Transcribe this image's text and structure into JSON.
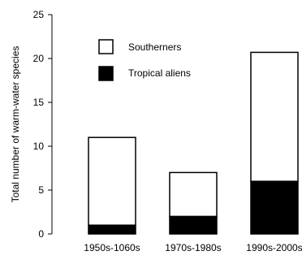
{
  "chart_data": {
    "type": "bar",
    "stacked": true,
    "categories": [
      "1950s-1060s",
      "1970s-1980s",
      "1990s-2000s"
    ],
    "series": [
      {
        "name": "Tropical aliens",
        "values": [
          1,
          2,
          6
        ],
        "color": "#000000"
      },
      {
        "name": "Southerners",
        "values": [
          10,
          5,
          14.7
        ],
        "color": "#ffffff"
      }
    ],
    "totals": [
      11,
      7,
      20.7
    ],
    "ylabel": "Total number of warm-water species",
    "xlabel": "",
    "ylim": [
      0,
      25
    ],
    "yticks": [
      0,
      5,
      10,
      15,
      20,
      25
    ],
    "grid": false,
    "legend": {
      "position": "top-left",
      "entries": [
        "Southerners",
        "Tropical aliens"
      ]
    }
  }
}
